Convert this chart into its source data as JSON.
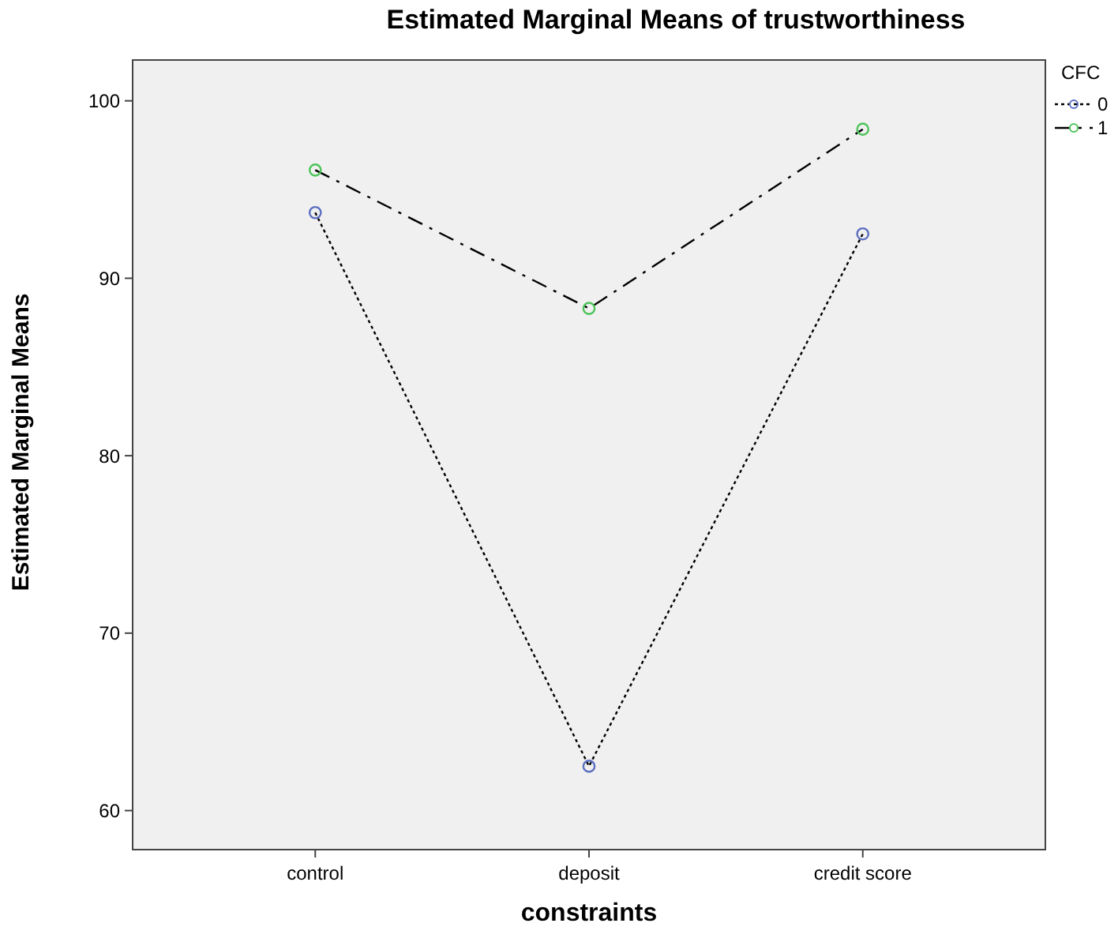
{
  "chart_data": {
    "type": "line",
    "title": "Estimated Marginal Means of trustworthiness",
    "xlabel": "constraints",
    "ylabel": "Estimated Marginal Means",
    "legend_title": "CFC",
    "categories": [
      "control",
      "deposit",
      "credit score"
    ],
    "series": [
      {
        "name": "0",
        "color": "#5b6fc0",
        "values": [
          93.7,
          62.5,
          92.5
        ],
        "line_style": "dotted"
      },
      {
        "name": "1",
        "color": "#4cc45a",
        "values": [
          96.1,
          88.3,
          98.4
        ],
        "line_style": "dashed"
      }
    ],
    "ylim": [
      57.8,
      102.3
    ],
    "yticks": [
      60,
      70,
      80,
      90,
      100
    ],
    "grid": false,
    "legend": "top right",
    "marker": "circle"
  }
}
